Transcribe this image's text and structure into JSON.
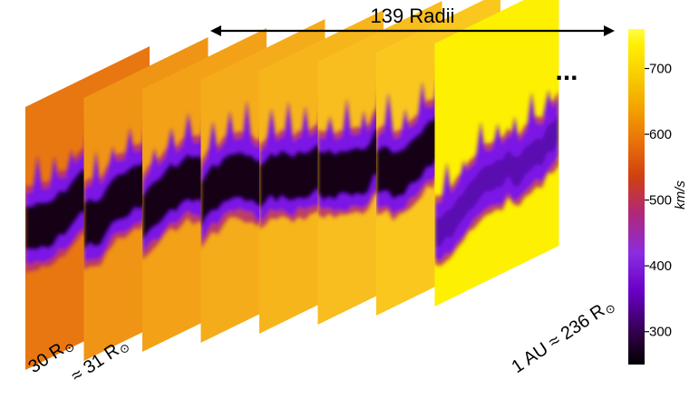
{
  "span_label": "139 Radii",
  "ellipsis": "...",
  "slice_labels": {
    "first_value": "30 R",
    "second_value": "≈ 31 R",
    "last_value": "1 AU ≈ 236 R",
    "sun_symbol": "⊙"
  },
  "colorbar": {
    "unit": "km/s",
    "ticks": [
      "700",
      "600",
      "500",
      "400",
      "300"
    ],
    "range": [
      250,
      760
    ],
    "tick_values": [
      700,
      600,
      500,
      400,
      300
    ],
    "colormap": [
      "#000000",
      "#2a003e",
      "#6a00c8",
      "#8a2ce0",
      "#b0287a",
      "#d04010",
      "#e8700a",
      "#f3a000",
      "#f8cc00",
      "#ffee00",
      "#ffff40"
    ]
  },
  "slices": [
    {
      "ambient": "#e87712",
      "band": "dark"
    },
    {
      "ambient": "#f09415",
      "band": "dark"
    },
    {
      "ambient": "#f3a117",
      "band": "dark"
    },
    {
      "ambient": "#f5ac1a",
      "band": "dark"
    },
    {
      "ambient": "#f7b51c",
      "band": "dark"
    },
    {
      "ambient": "#f8bd1e",
      "band": "dark"
    },
    {
      "ambient": "#fac71f",
      "band": "dark"
    },
    {
      "ambient": "#fdf000",
      "band": "purple"
    }
  ],
  "colors": {
    "band_dark": "#120018",
    "band_purple": "#7b13e6",
    "band_edge": "#b32c6e",
    "axis": "#000000"
  }
}
